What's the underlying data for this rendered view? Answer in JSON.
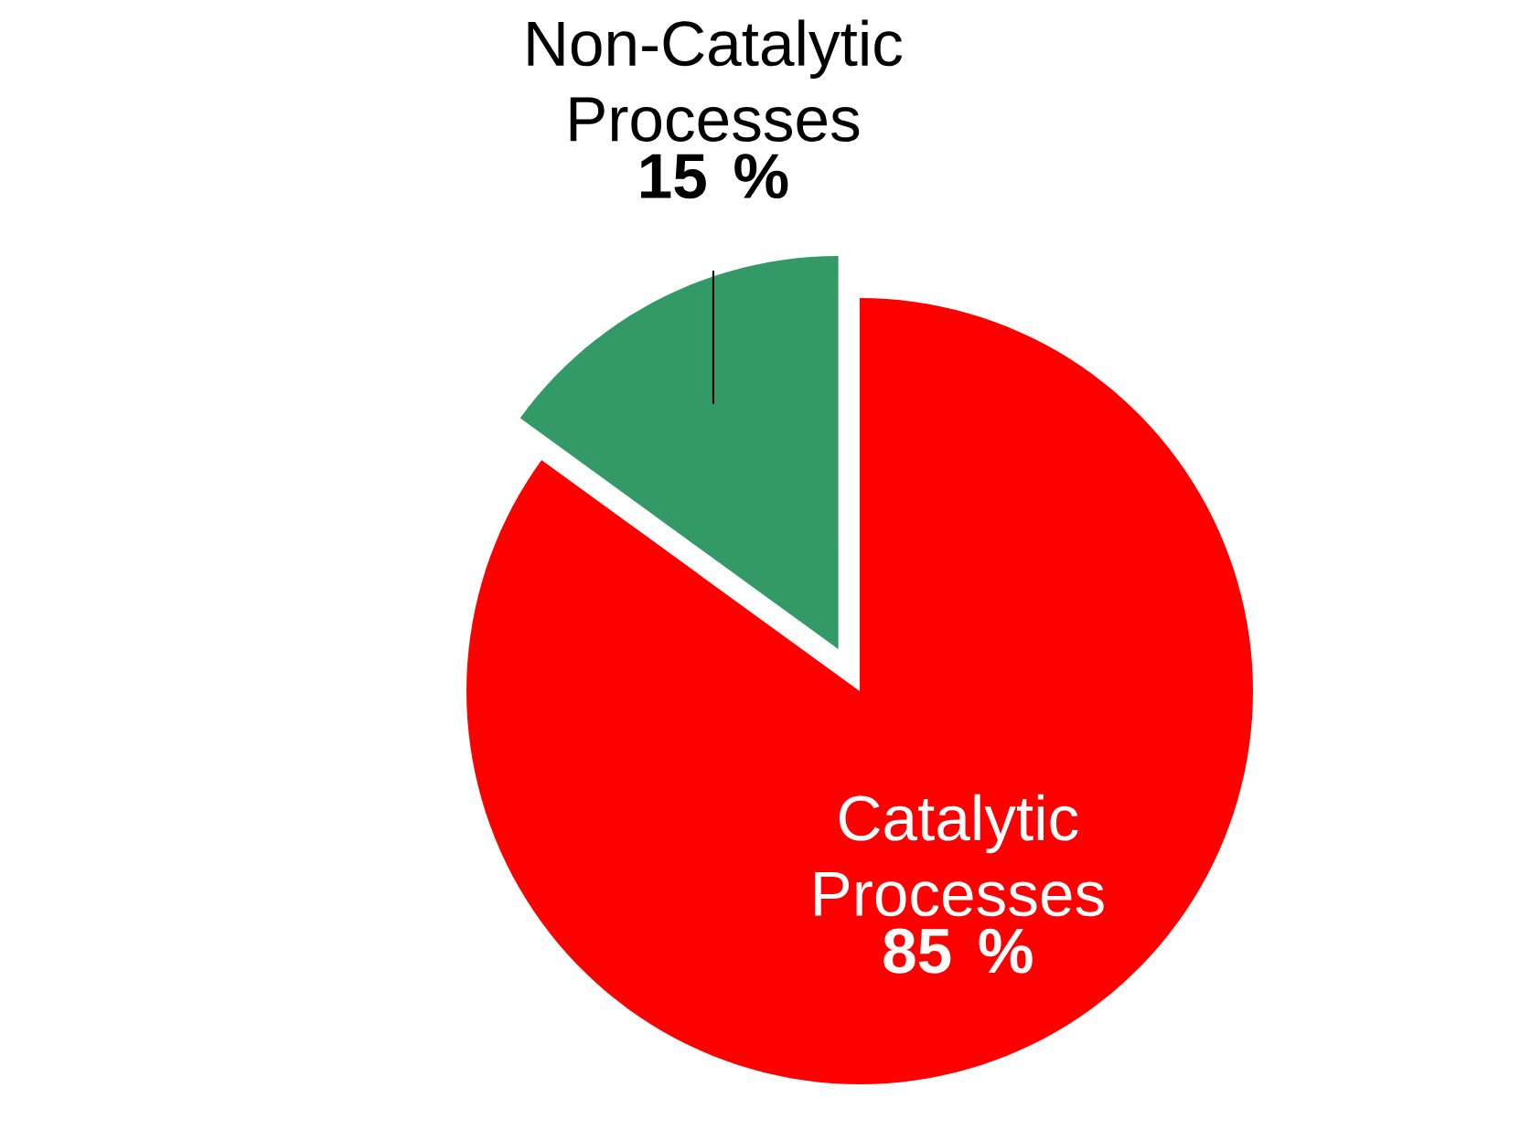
{
  "chart_data": {
    "type": "pie",
    "categories": [
      "Non-Catalytic Processes",
      "Catalytic Processes"
    ],
    "values": [
      15,
      85
    ],
    "colors": [
      "#339966",
      "#ff0000"
    ],
    "value_labels": [
      "15 %",
      "85 %"
    ],
    "legend": false
  }
}
